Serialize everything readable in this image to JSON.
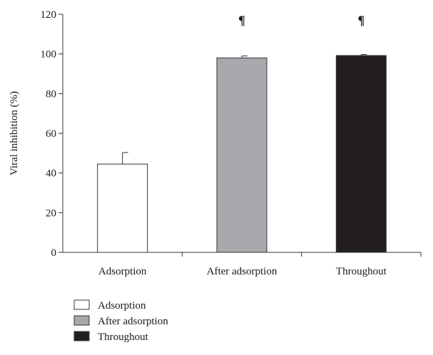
{
  "chart_data": {
    "type": "bar",
    "title": "",
    "xlabel": "",
    "ylabel": "Viral inhibition (%)",
    "ylim": [
      0,
      120
    ],
    "yticks": [
      0,
      20,
      40,
      60,
      80,
      100,
      120
    ],
    "grid": false,
    "legend_position": "bottom-left",
    "categories": [
      "Adsorption",
      "After adsorption",
      "Throughout"
    ],
    "values": [
      44.5,
      98,
      99.2
    ],
    "error": [
      5.8,
      1.0,
      0.5
    ],
    "annotations": [
      "",
      "¶",
      "¶"
    ],
    "colors": [
      "#ffffff",
      "#a8a9ac",
      "#231f20"
    ],
    "legend": [
      {
        "label": "Adsorption",
        "color": "#ffffff"
      },
      {
        "label": "After adsorption",
        "color": "#a8a9ac"
      },
      {
        "label": "Throughout",
        "color": "#231f20"
      }
    ]
  }
}
